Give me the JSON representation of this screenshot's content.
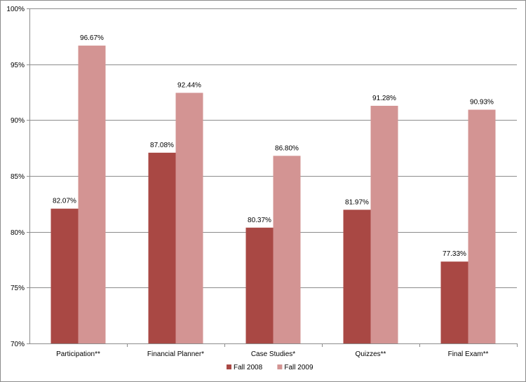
{
  "chart_data": {
    "type": "bar",
    "categories": [
      "Participation**",
      "Financial Planner*",
      "Case Studies*",
      "Quizzes**",
      "Final Exam**"
    ],
    "series": [
      {
        "name": "Fall 2008",
        "color": "#a94844",
        "values": [
          82.07,
          87.08,
          80.37,
          81.97,
          77.33
        ],
        "labels": [
          "82.07%",
          "87.08%",
          "80.37%",
          "81.97%",
          "77.33%"
        ]
      },
      {
        "name": "Fall 2009",
        "color": "#d39493",
        "values": [
          96.67,
          92.44,
          86.8,
          91.28,
          90.93
        ],
        "labels": [
          "96.67%",
          "92.44%",
          "86.80%",
          "91.28%",
          "90.93%"
        ]
      }
    ],
    "ylim": [
      70,
      100
    ],
    "yticks": [
      70,
      75,
      80,
      85,
      90,
      95,
      100
    ],
    "ytick_labels": [
      "70%",
      "75%",
      "80%",
      "85%",
      "90%",
      "95%",
      "100%"
    ],
    "grid": true,
    "legend": "bottom-center",
    "title": "",
    "xlabel": "",
    "ylabel": ""
  }
}
